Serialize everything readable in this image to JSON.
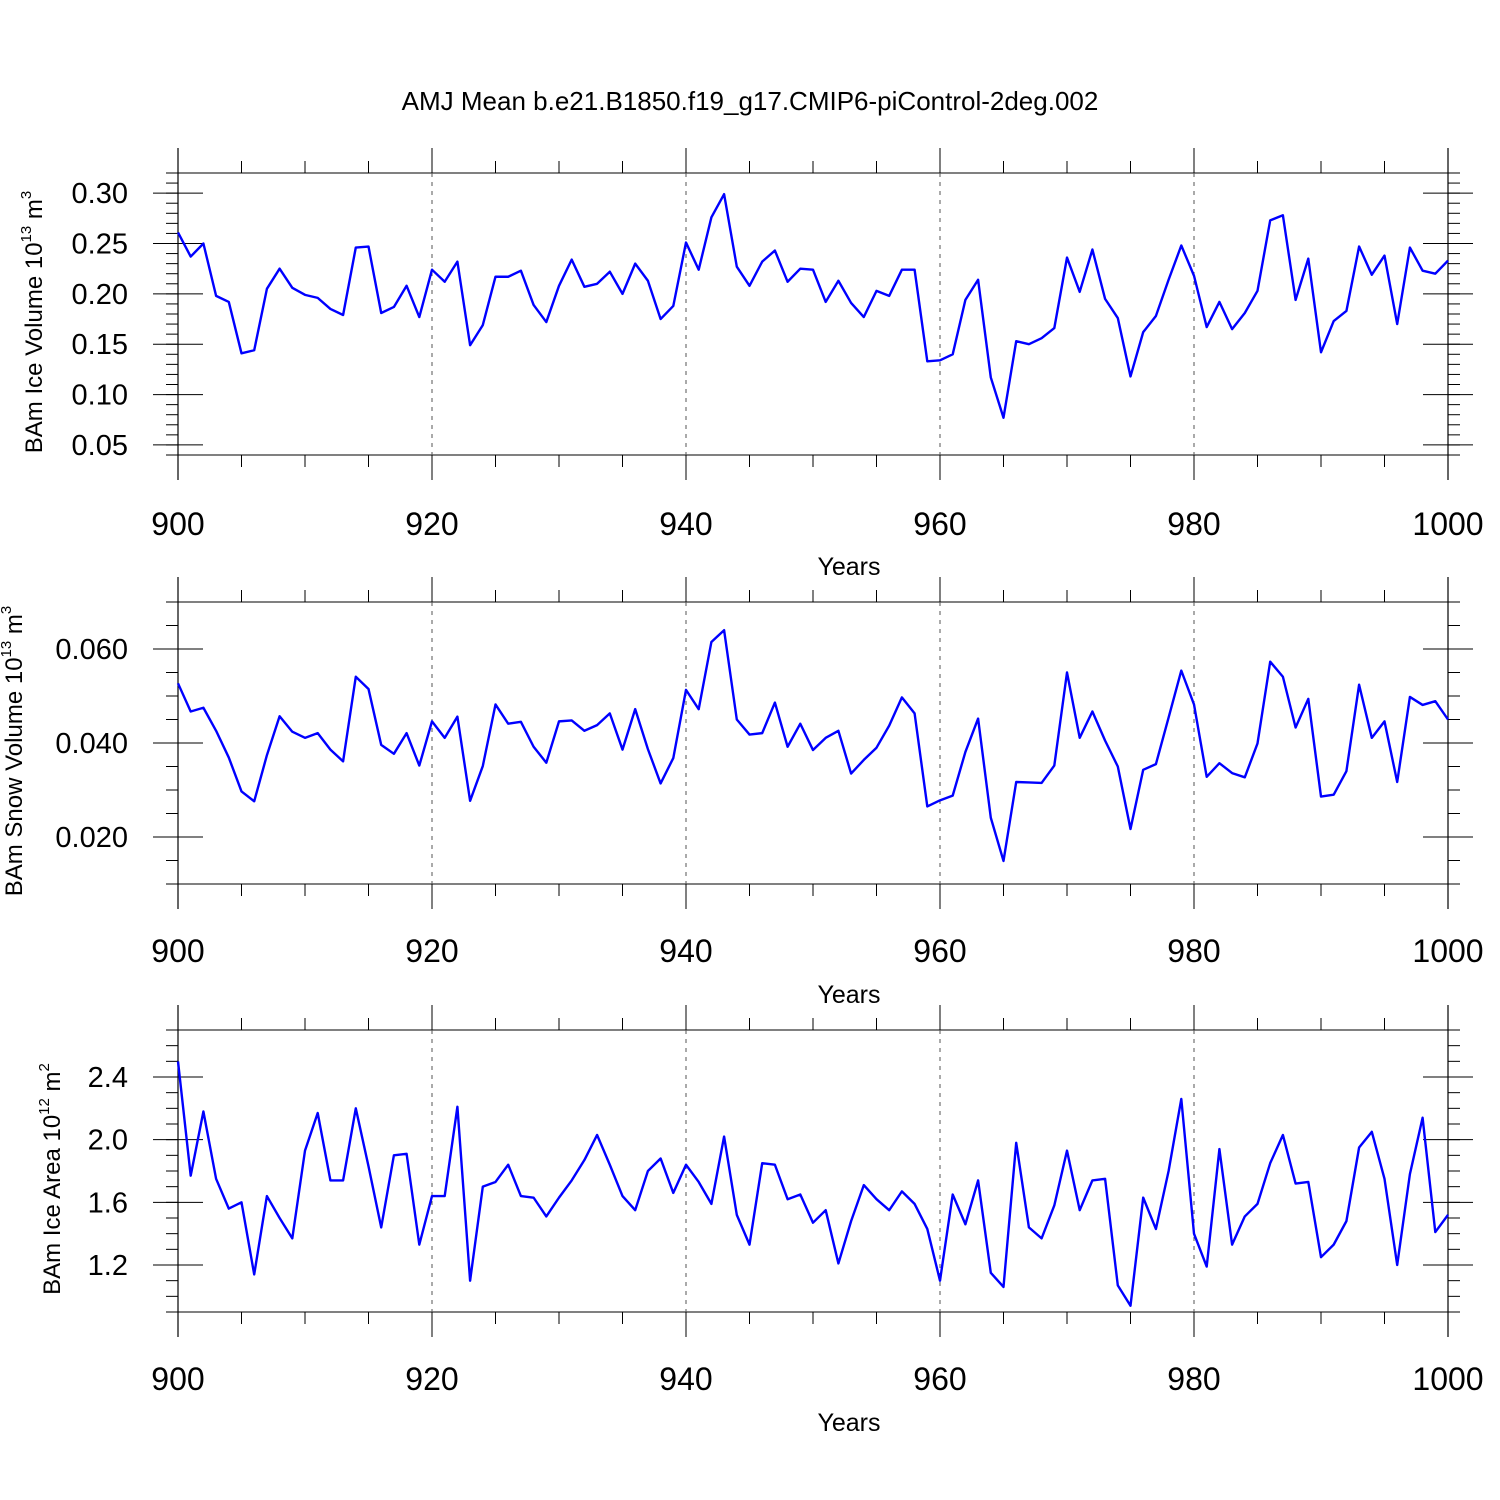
{
  "title": "AMJ Mean b.e21.B1850.f19_g17.CMIP6-piControl-2deg.002",
  "chart_data": [
    {
      "type": "line",
      "ylabel": {
        "base": "BAm Ice Volume 10",
        "exp": "13",
        "unit": " m",
        "unit_exp": "3"
      },
      "xlabel": "Years",
      "xlim": [
        900,
        1000
      ],
      "ylim": [
        0.04,
        0.32
      ],
      "xticks": [
        900,
        920,
        940,
        960,
        980,
        1000
      ],
      "yticks": [
        0.05,
        0.1,
        0.15,
        0.2,
        0.25,
        0.3
      ],
      "ytick_labels": [
        "0.05",
        "0.10",
        "0.15",
        "0.20",
        "0.25",
        "0.30"
      ],
      "minor_y": 0.01,
      "color": "#0000ff",
      "x_start": 900,
      "values": [
        0.261,
        0.237,
        0.25,
        0.198,
        0.192,
        0.141,
        0.144,
        0.205,
        0.225,
        0.206,
        0.199,
        0.196,
        0.185,
        0.179,
        0.246,
        0.247,
        0.181,
        0.187,
        0.208,
        0.177,
        0.224,
        0.212,
        0.232,
        0.149,
        0.169,
        0.217,
        0.217,
        0.223,
        0.189,
        0.172,
        0.208,
        0.234,
        0.207,
        0.21,
        0.222,
        0.2,
        0.23,
        0.213,
        0.175,
        0.188,
        0.251,
        0.224,
        0.276,
        0.299,
        0.227,
        0.208,
        0.232,
        0.243,
        0.212,
        0.225,
        0.224,
        0.192,
        0.213,
        0.191,
        0.177,
        0.203,
        0.198,
        0.224,
        0.224,
        0.133,
        0.134,
        0.14,
        0.194,
        0.214,
        0.117,
        0.077,
        0.153,
        0.15,
        0.156,
        0.166,
        0.236,
        0.202,
        0.244,
        0.195,
        0.176,
        0.118,
        0.162,
        0.178,
        0.214,
        0.248,
        0.218,
        0.167,
        0.192,
        0.165,
        0.181,
        0.203,
        0.273,
        0.278,
        0.194,
        0.235,
        0.142,
        0.173,
        0.183,
        0.247,
        0.219,
        0.238,
        0.17,
        0.246,
        0.223,
        0.22,
        0.233
      ]
    },
    {
      "type": "line",
      "ylabel": {
        "base": "BAm Snow Volume 10",
        "exp": "13",
        "unit": " m",
        "unit_exp": "3"
      },
      "xlabel": "Years",
      "xlim": [
        900,
        1000
      ],
      "ylim": [
        0.01,
        0.07
      ],
      "xticks": [
        900,
        920,
        940,
        960,
        980,
        1000
      ],
      "yticks": [
        0.02,
        0.04,
        0.06
      ],
      "ytick_labels": [
        "0.020",
        "0.040",
        "0.060"
      ],
      "minor_y": 0.005,
      "color": "#0000ff",
      "x_start": 900,
      "values": [
        0.0527,
        0.0467,
        0.0475,
        0.0426,
        0.0369,
        0.0297,
        0.0276,
        0.0374,
        0.0457,
        0.0424,
        0.0411,
        0.0421,
        0.0386,
        0.0361,
        0.0541,
        0.0515,
        0.0396,
        0.0377,
        0.0421,
        0.0352,
        0.0446,
        0.0411,
        0.0456,
        0.0277,
        0.0351,
        0.0482,
        0.0441,
        0.0445,
        0.0392,
        0.0358,
        0.0446,
        0.0448,
        0.0426,
        0.0438,
        0.0463,
        0.0386,
        0.0472,
        0.0387,
        0.0314,
        0.0368,
        0.0513,
        0.0472,
        0.0615,
        0.064,
        0.045,
        0.0418,
        0.0421,
        0.0486,
        0.0392,
        0.0441,
        0.0385,
        0.0411,
        0.0426,
        0.0335,
        0.0364,
        0.039,
        0.0437,
        0.0497,
        0.0463,
        0.0265,
        0.0278,
        0.0288,
        0.0381,
        0.0452,
        0.0241,
        0.0149,
        0.0317,
        0.0316,
        0.0315,
        0.0352,
        0.055,
        0.0411,
        0.0467,
        0.0405,
        0.035,
        0.0217,
        0.0343,
        0.0355,
        0.0454,
        0.0554,
        0.0482,
        0.0328,
        0.0357,
        0.0336,
        0.0327,
        0.0399,
        0.0573,
        0.0541,
        0.0433,
        0.0494,
        0.0286,
        0.029,
        0.034,
        0.0524,
        0.0411,
        0.0446,
        0.0317,
        0.0498,
        0.0481,
        0.0489,
        0.045
      ]
    },
    {
      "type": "line",
      "ylabel": {
        "base": "BAm Ice Area 10",
        "exp": "12",
        "unit": " m",
        "unit_exp": "2"
      },
      "xlabel": "Years",
      "xlim": [
        900,
        1000
      ],
      "ylim": [
        0.9,
        2.7
      ],
      "xticks": [
        900,
        920,
        940,
        960,
        980,
        1000
      ],
      "yticks": [
        1.2,
        1.6,
        2.0,
        2.4
      ],
      "ytick_labels": [
        "1.2",
        "1.6",
        "2.0",
        "2.4"
      ],
      "minor_y": 0.1,
      "color": "#0000ff",
      "x_start": 900,
      "values": [
        2.5,
        1.77,
        2.18,
        1.75,
        1.56,
        1.6,
        1.14,
        1.64,
        1.5,
        1.37,
        1.93,
        2.17,
        1.74,
        1.74,
        2.2,
        1.83,
        1.44,
        1.9,
        1.91,
        1.33,
        1.64,
        1.64,
        2.21,
        1.1,
        1.7,
        1.73,
        1.84,
        1.64,
        1.63,
        1.51,
        1.63,
        1.74,
        1.87,
        2.03,
        1.84,
        1.64,
        1.55,
        1.8,
        1.88,
        1.66,
        1.84,
        1.73,
        1.59,
        2.02,
        1.52,
        1.33,
        1.85,
        1.84,
        1.62,
        1.65,
        1.47,
        1.55,
        1.21,
        1.48,
        1.71,
        1.62,
        1.55,
        1.67,
        1.59,
        1.43,
        1.1,
        1.65,
        1.46,
        1.74,
        1.15,
        1.06,
        1.98,
        1.44,
        1.37,
        1.58,
        1.93,
        1.55,
        1.74,
        1.75,
        1.07,
        0.94,
        1.63,
        1.43,
        1.8,
        2.26,
        1.4,
        1.19,
        1.94,
        1.33,
        1.51,
        1.59,
        1.85,
        2.03,
        1.72,
        1.73,
        1.25,
        1.33,
        1.48,
        1.95,
        2.05,
        1.75,
        1.2,
        1.78,
        2.14,
        1.41,
        1.52
      ]
    }
  ]
}
